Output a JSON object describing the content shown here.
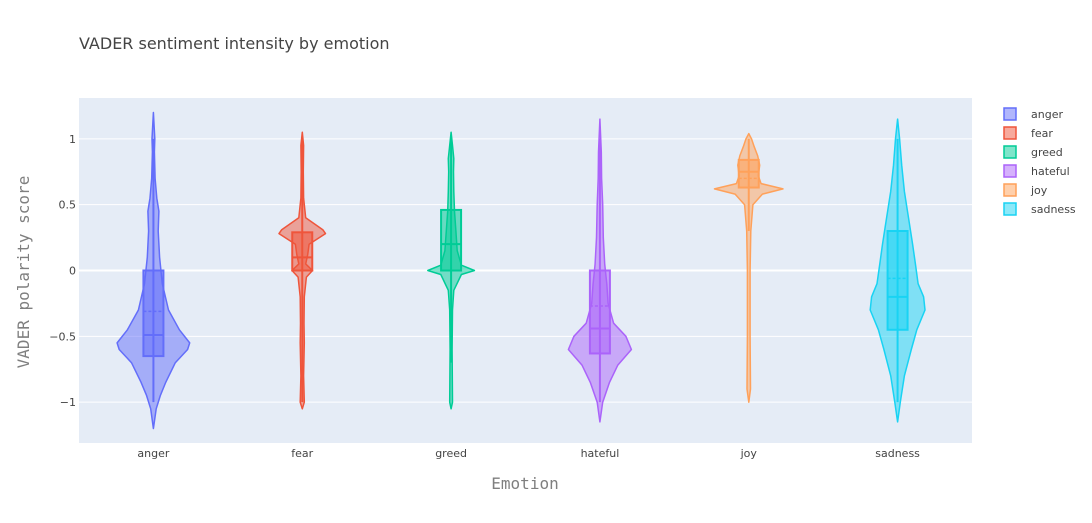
{
  "chart_data": {
    "type": "violin",
    "title": "VADER sentiment intensity by emotion",
    "xlabel": "Emotion",
    "ylabel": "VADER polarity score",
    "categories": [
      "anger",
      "fear",
      "greed",
      "hateful",
      "joy",
      "sadness"
    ],
    "ylim": [
      -1.31,
      1.31
    ],
    "yticks": [
      1,
      0.5,
      0,
      -0.5,
      -1
    ],
    "ytick_labels": [
      "1",
      "0.5",
      "0",
      "−0.5",
      "−1"
    ],
    "grid": true,
    "legend_position": "right",
    "series": [
      {
        "name": "anger",
        "color": "#636efa",
        "range": [
          -1.2,
          1.2
        ],
        "box": {
          "q1": -0.65,
          "median": -0.49,
          "q3": 0.0,
          "mean": -0.31,
          "whisker_low": -1.0,
          "whisker_high": 1.0
        },
        "density": [
          [
            -1.2,
            0
          ],
          [
            -1.05,
            0.04
          ],
          [
            -0.95,
            0.1
          ],
          [
            -0.85,
            0.18
          ],
          [
            -0.7,
            0.32
          ],
          [
            -0.6,
            0.5
          ],
          [
            -0.55,
            0.53
          ],
          [
            -0.45,
            0.38
          ],
          [
            -0.3,
            0.22
          ],
          [
            -0.1,
            0.13
          ],
          [
            0.1,
            0.09
          ],
          [
            0.3,
            0.07
          ],
          [
            0.45,
            0.08
          ],
          [
            0.55,
            0.05
          ],
          [
            0.7,
            0.025
          ],
          [
            0.9,
            0.015
          ],
          [
            1.0,
            0.02
          ],
          [
            1.2,
            0
          ]
        ]
      },
      {
        "name": "fear",
        "color": "#ef553b",
        "range": [
          -1.05,
          1.05
        ],
        "box": {
          "q1": 0.0,
          "median": 0.1,
          "q3": 0.29,
          "mean": 0.1,
          "whisker_low": -1.0,
          "whisker_high": 1.0
        },
        "density": [
          [
            -1.05,
            0
          ],
          [
            -1.0,
            0.03
          ],
          [
            -0.8,
            0.02
          ],
          [
            -0.55,
            0.03
          ],
          [
            -0.4,
            0.025
          ],
          [
            -0.2,
            0.03
          ],
          [
            -0.05,
            0.06
          ],
          [
            0,
            0.15
          ],
          [
            0.05,
            0.05
          ],
          [
            0.12,
            0.08
          ],
          [
            0.2,
            0.1
          ],
          [
            0.28,
            0.34
          ],
          [
            0.31,
            0.3
          ],
          [
            0.4,
            0.05
          ],
          [
            0.55,
            0.02
          ],
          [
            0.75,
            0.015
          ],
          [
            0.95,
            0.02
          ],
          [
            1.05,
            0
          ]
        ]
      },
      {
        "name": "greed",
        "color": "#00cc96",
        "range": [
          -1.05,
          1.05
        ],
        "box": {
          "q1": 0.0,
          "median": 0.2,
          "q3": 0.46,
          "mean": 0.2,
          "whisker_low": -0.7,
          "whisker_high": 1.0
        },
        "density": [
          [
            -1.05,
            0
          ],
          [
            -1.0,
            0.02
          ],
          [
            -0.6,
            0.015
          ],
          [
            -0.3,
            0.02
          ],
          [
            -0.15,
            0.04
          ],
          [
            -0.03,
            0.15
          ],
          [
            0,
            0.34
          ],
          [
            0.04,
            0.15
          ],
          [
            0.15,
            0.09
          ],
          [
            0.3,
            0.07
          ],
          [
            0.45,
            0.05
          ],
          [
            0.6,
            0.04
          ],
          [
            0.75,
            0.035
          ],
          [
            0.85,
            0.04
          ],
          [
            0.95,
            0.02
          ],
          [
            1.05,
            0
          ]
        ]
      },
      {
        "name": "hateful",
        "color": "#ab63fa",
        "range": [
          -1.15,
          1.15
        ],
        "box": {
          "q1": -0.63,
          "median": -0.44,
          "q3": 0.0,
          "mean": -0.27,
          "whisker_low": -1.0,
          "whisker_high": 1.0
        },
        "density": [
          [
            -1.15,
            0
          ],
          [
            -1.0,
            0.04
          ],
          [
            -0.85,
            0.14
          ],
          [
            -0.72,
            0.26
          ],
          [
            -0.6,
            0.46
          ],
          [
            -0.5,
            0.38
          ],
          [
            -0.4,
            0.2
          ],
          [
            -0.25,
            0.12
          ],
          [
            -0.1,
            0.1
          ],
          [
            0.05,
            0.07
          ],
          [
            0.25,
            0.05
          ],
          [
            0.5,
            0.04
          ],
          [
            0.7,
            0.025
          ],
          [
            0.9,
            0.02
          ],
          [
            1.15,
            0
          ]
        ]
      },
      {
        "name": "joy",
        "color": "#ffa15a",
        "range": [
          -1.0,
          1.04
        ],
        "box": {
          "q1": 0.63,
          "median": 0.75,
          "q3": 0.84,
          "mean": 0.7,
          "whisker_low": 0.3,
          "whisker_high": 1.0
        },
        "density": [
          [
            -1.0,
            0
          ],
          [
            -0.9,
            0.025
          ],
          [
            -0.5,
            0.02
          ],
          [
            0,
            0.02
          ],
          [
            0.3,
            0.03
          ],
          [
            0.5,
            0.06
          ],
          [
            0.58,
            0.2
          ],
          [
            0.62,
            0.5
          ],
          [
            0.66,
            0.18
          ],
          [
            0.72,
            0.14
          ],
          [
            0.8,
            0.16
          ],
          [
            0.87,
            0.13
          ],
          [
            0.94,
            0.08
          ],
          [
            1.0,
            0.04
          ],
          [
            1.04,
            0
          ]
        ]
      },
      {
        "name": "sadness",
        "color": "#19d3f3",
        "range": [
          -1.15,
          1.15
        ],
        "box": {
          "q1": -0.45,
          "median": -0.2,
          "q3": 0.3,
          "mean": -0.06,
          "whisker_low": -1.0,
          "whisker_high": 1.0
        },
        "density": [
          [
            -1.15,
            0
          ],
          [
            -1.0,
            0.04
          ],
          [
            -0.8,
            0.1
          ],
          [
            -0.6,
            0.2
          ],
          [
            -0.45,
            0.28
          ],
          [
            -0.3,
            0.4
          ],
          [
            -0.2,
            0.38
          ],
          [
            -0.1,
            0.3
          ],
          [
            0.05,
            0.26
          ],
          [
            0.2,
            0.22
          ],
          [
            0.4,
            0.16
          ],
          [
            0.6,
            0.1
          ],
          [
            0.8,
            0.06
          ],
          [
            1.0,
            0.03
          ],
          [
            1.15,
            0
          ]
        ]
      }
    ]
  }
}
